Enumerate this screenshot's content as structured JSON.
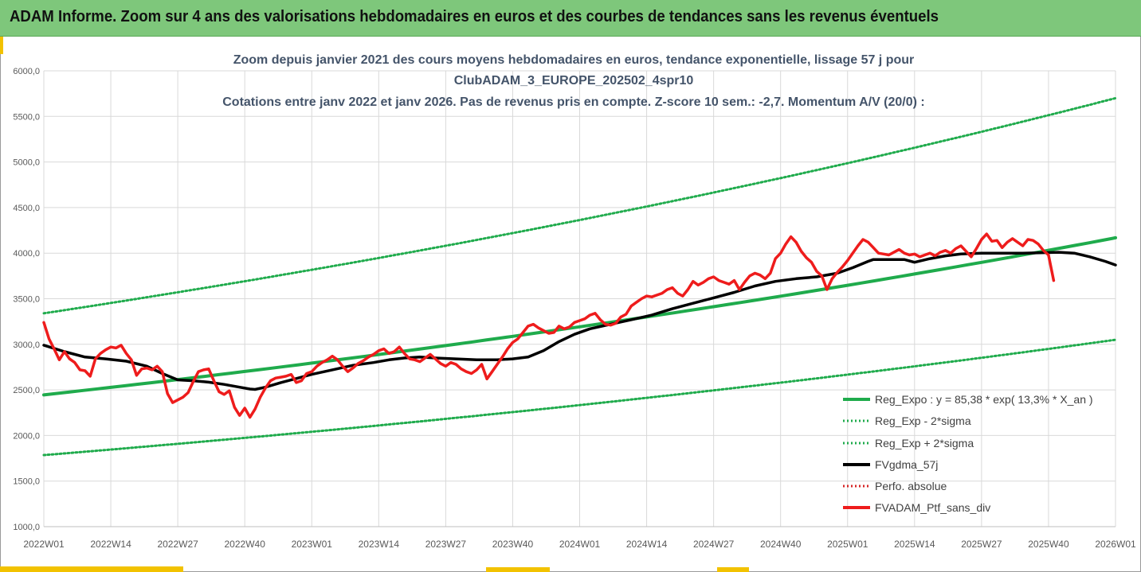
{
  "header": {
    "title": "ADAM Informe. Zoom sur 4 ans des valorisations hebdomadaires en euros et des courbes de tendances sans les revenus éventuels"
  },
  "colors": {
    "header_bg": "#7ec77b",
    "trend": "#1fab4c",
    "smooth": "#000000",
    "portfolio": "#ee1c1c",
    "absolute": "#d62728",
    "accent_yellow": "#f2c200"
  },
  "chart_data": {
    "type": "line",
    "title_lines": [
      "Zoom depuis janvier 2021 des cours moyens hebdomadaires  en euros, tendance exponentielle, lissage 57 j pour",
      "ClubADAM_3_EUROPE_202502_4spr10",
      "Cotations entre janv 2022 et janv 2026. Pas de revenus pris en compte. Z-score 10 sem.: -2,7. Momentum A/V (20/0) :"
    ],
    "ylim": [
      1000,
      6000
    ],
    "yticks": [
      "1000,0",
      "1500,0",
      "2000,0",
      "2500,0",
      "3000,0",
      "3500,0",
      "4000,0",
      "4500,0",
      "5000,0",
      "5500,0",
      "6000,0"
    ],
    "x_range_weeks": [
      0,
      208
    ],
    "xticks": [
      {
        "w": 0,
        "label": "2022W01"
      },
      {
        "w": 13,
        "label": "2022W14"
      },
      {
        "w": 26,
        "label": "2022W27"
      },
      {
        "w": 39,
        "label": "2022W40"
      },
      {
        "w": 52,
        "label": "2023W01"
      },
      {
        "w": 65,
        "label": "2023W14"
      },
      {
        "w": 78,
        "label": "2023W27"
      },
      {
        "w": 91,
        "label": "2023W40"
      },
      {
        "w": 104,
        "label": "2024W01"
      },
      {
        "w": 117,
        "label": "2024W14"
      },
      {
        "w": 130,
        "label": "2024W27"
      },
      {
        "w": 143,
        "label": "2024W40"
      },
      {
        "w": 156,
        "label": "2025W01"
      },
      {
        "w": 169,
        "label": "2025W14"
      },
      {
        "w": 182,
        "label": "2025W27"
      },
      {
        "w": 195,
        "label": "2025W40"
      },
      {
        "w": 208,
        "label": "2026W01"
      }
    ],
    "series": [
      {
        "name": "Reg_Expo : y = 85,38 * exp( 13,3% *  X_an )",
        "key": "reg",
        "style": "solid",
        "points": [
          [
            0,
            2445
          ],
          [
            208,
            4168
          ]
        ]
      },
      {
        "name": "Reg_Exp - 2*sigma",
        "key": "reg_low",
        "style": "dotted",
        "points": [
          [
            0,
            1785
          ],
          [
            208,
            3050
          ]
        ]
      },
      {
        "name": "Reg_Exp + 2*sigma",
        "key": "reg_high",
        "style": "dotted",
        "points": [
          [
            0,
            3340
          ],
          [
            208,
            5700
          ]
        ]
      },
      {
        "name": "FVgdma_57j",
        "key": "smooth",
        "style": "solid",
        "points": [
          [
            0,
            2990
          ],
          [
            4,
            2920
          ],
          [
            8,
            2860
          ],
          [
            12,
            2840
          ],
          [
            16,
            2815
          ],
          [
            20,
            2760
          ],
          [
            23,
            2680
          ],
          [
            26,
            2610
          ],
          [
            29,
            2600
          ],
          [
            32,
            2585
          ],
          [
            35,
            2560
          ],
          [
            38,
            2530
          ],
          [
            40,
            2510
          ],
          [
            41,
            2505
          ],
          [
            43,
            2530
          ],
          [
            46,
            2580
          ],
          [
            49,
            2625
          ],
          [
            52,
            2670
          ],
          [
            56,
            2720
          ],
          [
            60,
            2770
          ],
          [
            64,
            2800
          ],
          [
            67,
            2830
          ],
          [
            70,
            2850
          ],
          [
            73,
            2860
          ],
          [
            76,
            2850
          ],
          [
            80,
            2840
          ],
          [
            84,
            2830
          ],
          [
            88,
            2830
          ],
          [
            91,
            2840
          ],
          [
            94,
            2860
          ],
          [
            97,
            2930
          ],
          [
            100,
            3030
          ],
          [
            103,
            3110
          ],
          [
            106,
            3170
          ],
          [
            110,
            3220
          ],
          [
            114,
            3270
          ],
          [
            118,
            3320
          ],
          [
            122,
            3390
          ],
          [
            126,
            3450
          ],
          [
            130,
            3510
          ],
          [
            134,
            3570
          ],
          [
            138,
            3640
          ],
          [
            142,
            3690
          ],
          [
            146,
            3720
          ],
          [
            150,
            3740
          ],
          [
            154,
            3780
          ],
          [
            157,
            3840
          ],
          [
            160,
            3910
          ],
          [
            161,
            3930
          ],
          [
            164,
            3930
          ],
          [
            167,
            3930
          ],
          [
            169,
            3900
          ],
          [
            172,
            3940
          ],
          [
            175,
            3970
          ],
          [
            178,
            3990
          ],
          [
            182,
            4000
          ],
          [
            186,
            4000
          ],
          [
            190,
            4000
          ],
          [
            194,
            4005
          ],
          [
            197,
            4010
          ],
          [
            200,
            4000
          ],
          [
            203,
            3960
          ],
          [
            206,
            3910
          ],
          [
            208,
            3870
          ]
        ]
      },
      {
        "name": "Perfo. absolue",
        "key": "absolute",
        "style": "dotted",
        "points": []
      },
      {
        "name": "FVADAM_Ptf_sans_div",
        "key": "portfolio",
        "style": "solid",
        "points": [
          [
            0,
            3240
          ],
          [
            1,
            3060
          ],
          [
            2,
            2950
          ],
          [
            3,
            2830
          ],
          [
            4,
            2920
          ],
          [
            5,
            2840
          ],
          [
            6,
            2800
          ],
          [
            7,
            2720
          ],
          [
            8,
            2710
          ],
          [
            9,
            2650
          ],
          [
            10,
            2840
          ],
          [
            11,
            2900
          ],
          [
            12,
            2940
          ],
          [
            13,
            2970
          ],
          [
            14,
            2960
          ],
          [
            15,
            2990
          ],
          [
            16,
            2900
          ],
          [
            17,
            2830
          ],
          [
            18,
            2660
          ],
          [
            19,
            2730
          ],
          [
            20,
            2740
          ],
          [
            21,
            2720
          ],
          [
            22,
            2760
          ],
          [
            23,
            2700
          ],
          [
            24,
            2460
          ],
          [
            25,
            2360
          ],
          [
            26,
            2390
          ],
          [
            27,
            2420
          ],
          [
            28,
            2470
          ],
          [
            29,
            2590
          ],
          [
            30,
            2700
          ],
          [
            31,
            2720
          ],
          [
            32,
            2730
          ],
          [
            33,
            2600
          ],
          [
            34,
            2480
          ],
          [
            35,
            2450
          ],
          [
            36,
            2490
          ],
          [
            37,
            2310
          ],
          [
            38,
            2220
          ],
          [
            39,
            2300
          ],
          [
            40,
            2200
          ],
          [
            41,
            2290
          ],
          [
            42,
            2420
          ],
          [
            43,
            2520
          ],
          [
            44,
            2600
          ],
          [
            45,
            2630
          ],
          [
            46,
            2640
          ],
          [
            47,
            2650
          ],
          [
            48,
            2670
          ],
          [
            49,
            2580
          ],
          [
            50,
            2600
          ],
          [
            51,
            2680
          ],
          [
            52,
            2700
          ],
          [
            53,
            2760
          ],
          [
            54,
            2800
          ],
          [
            55,
            2830
          ],
          [
            56,
            2870
          ],
          [
            57,
            2830
          ],
          [
            58,
            2760
          ],
          [
            59,
            2700
          ],
          [
            60,
            2740
          ],
          [
            61,
            2790
          ],
          [
            62,
            2820
          ],
          [
            63,
            2860
          ],
          [
            64,
            2890
          ],
          [
            65,
            2930
          ],
          [
            66,
            2950
          ],
          [
            67,
            2900
          ],
          [
            68,
            2920
          ],
          [
            69,
            2970
          ],
          [
            70,
            2900
          ],
          [
            71,
            2840
          ],
          [
            72,
            2830
          ],
          [
            73,
            2810
          ],
          [
            74,
            2850
          ],
          [
            75,
            2890
          ],
          [
            76,
            2840
          ],
          [
            77,
            2790
          ],
          [
            78,
            2760
          ],
          [
            79,
            2800
          ],
          [
            80,
            2780
          ],
          [
            81,
            2730
          ],
          [
            82,
            2700
          ],
          [
            83,
            2680
          ],
          [
            84,
            2720
          ],
          [
            85,
            2780
          ],
          [
            86,
            2620
          ],
          [
            87,
            2700
          ],
          [
            88,
            2780
          ],
          [
            89,
            2860
          ],
          [
            90,
            2950
          ],
          [
            91,
            3020
          ],
          [
            92,
            3060
          ],
          [
            93,
            3130
          ],
          [
            94,
            3200
          ],
          [
            95,
            3220
          ],
          [
            96,
            3180
          ],
          [
            97,
            3150
          ],
          [
            98,
            3120
          ],
          [
            99,
            3130
          ],
          [
            100,
            3200
          ],
          [
            101,
            3170
          ],
          [
            102,
            3190
          ],
          [
            103,
            3240
          ],
          [
            104,
            3260
          ],
          [
            105,
            3280
          ],
          [
            106,
            3320
          ],
          [
            107,
            3340
          ],
          [
            108,
            3270
          ],
          [
            109,
            3220
          ],
          [
            110,
            3210
          ],
          [
            111,
            3230
          ],
          [
            112,
            3300
          ],
          [
            113,
            3330
          ],
          [
            114,
            3420
          ],
          [
            115,
            3460
          ],
          [
            116,
            3500
          ],
          [
            117,
            3530
          ],
          [
            118,
            3520
          ],
          [
            119,
            3540
          ],
          [
            120,
            3560
          ],
          [
            121,
            3600
          ],
          [
            122,
            3620
          ],
          [
            123,
            3560
          ],
          [
            124,
            3530
          ],
          [
            125,
            3600
          ],
          [
            126,
            3690
          ],
          [
            127,
            3650
          ],
          [
            128,
            3680
          ],
          [
            129,
            3720
          ],
          [
            130,
            3740
          ],
          [
            131,
            3700
          ],
          [
            132,
            3680
          ],
          [
            133,
            3660
          ],
          [
            134,
            3700
          ],
          [
            135,
            3600
          ],
          [
            136,
            3680
          ],
          [
            137,
            3750
          ],
          [
            138,
            3780
          ],
          [
            139,
            3760
          ],
          [
            140,
            3720
          ],
          [
            141,
            3780
          ],
          [
            142,
            3940
          ],
          [
            143,
            4000
          ],
          [
            144,
            4100
          ],
          [
            145,
            4180
          ],
          [
            146,
            4120
          ],
          [
            147,
            4020
          ],
          [
            148,
            3950
          ],
          [
            149,
            3900
          ],
          [
            150,
            3800
          ],
          [
            151,
            3750
          ],
          [
            152,
            3600
          ],
          [
            153,
            3720
          ],
          [
            154,
            3790
          ],
          [
            155,
            3850
          ],
          [
            156,
            3920
          ],
          [
            157,
            4000
          ],
          [
            158,
            4080
          ],
          [
            159,
            4150
          ],
          [
            160,
            4120
          ],
          [
            161,
            4060
          ],
          [
            162,
            4000
          ],
          [
            163,
            3990
          ],
          [
            164,
            3980
          ],
          [
            165,
            4010
          ],
          [
            166,
            4040
          ],
          [
            167,
            4000
          ],
          [
            168,
            3980
          ],
          [
            169,
            3990
          ],
          [
            170,
            3960
          ],
          [
            171,
            3980
          ],
          [
            172,
            4000
          ],
          [
            173,
            3970
          ],
          [
            174,
            4010
          ],
          [
            175,
            4030
          ],
          [
            176,
            4000
          ],
          [
            177,
            4050
          ],
          [
            178,
            4080
          ],
          [
            179,
            4020
          ],
          [
            180,
            3960
          ],
          [
            181,
            4050
          ],
          [
            182,
            4150
          ],
          [
            183,
            4210
          ],
          [
            184,
            4130
          ],
          [
            185,
            4140
          ],
          [
            186,
            4060
          ],
          [
            187,
            4120
          ],
          [
            188,
            4160
          ],
          [
            189,
            4120
          ],
          [
            190,
            4080
          ],
          [
            191,
            4150
          ],
          [
            192,
            4140
          ],
          [
            193,
            4100
          ],
          [
            194,
            4030
          ],
          [
            195,
            3980
          ],
          [
            196,
            3700
          ]
        ]
      }
    ]
  }
}
